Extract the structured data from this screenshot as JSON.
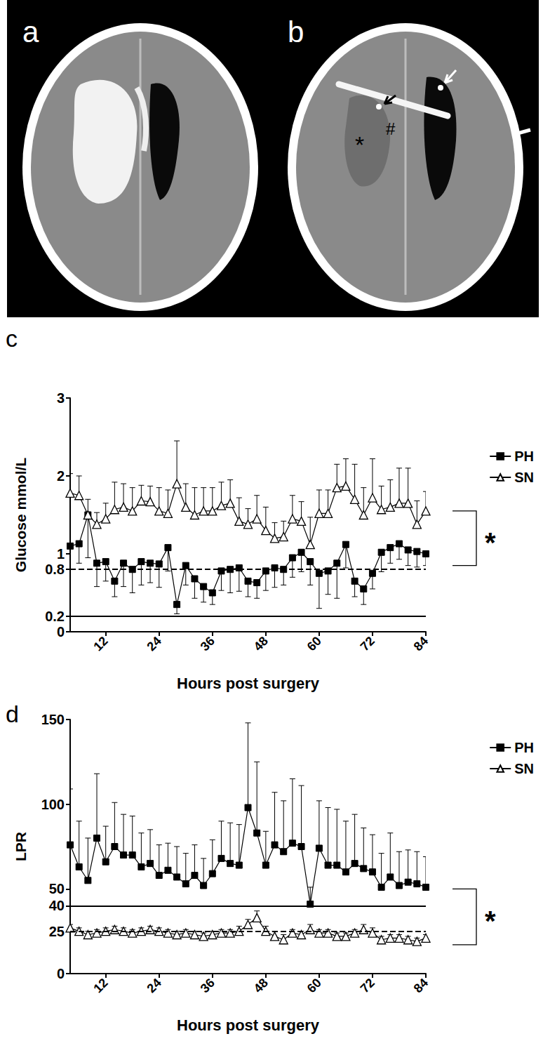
{
  "images": [
    {
      "panel": "a"
    },
    {
      "panel": "b",
      "annotations": [
        "*",
        "#"
      ]
    }
  ],
  "chart_data": [
    {
      "panel": "c",
      "type": "line",
      "x_label": "Hours post surgery",
      "y_label": "Glucose mmol/L",
      "x": [
        4,
        6,
        8,
        10,
        12,
        14,
        16,
        18,
        20,
        22,
        24,
        26,
        28,
        30,
        32,
        34,
        36,
        38,
        40,
        42,
        44,
        46,
        48,
        50,
        52,
        54,
        56,
        58,
        60,
        62,
        64,
        66,
        68,
        70,
        72,
        74,
        76,
        78,
        80,
        82,
        84
      ],
      "xlim": [
        4,
        84
      ],
      "xticks": [
        12,
        24,
        36,
        48,
        60,
        72,
        84
      ],
      "ylim": [
        0,
        3
      ],
      "yticks": [
        0,
        0.2,
        0.8,
        1,
        2,
        3
      ],
      "grid": false,
      "legend": "right",
      "reference_lines": [
        {
          "value": 0.8,
          "line_style": "dashed"
        },
        {
          "value": 0.2,
          "line_style": "solid"
        }
      ],
      "significance": {
        "text": "*",
        "y": [
          1.55,
          0.85
        ]
      },
      "series": [
        {
          "name": "PH",
          "color": "#000000",
          "marker": "square",
          "line_style": "solid",
          "values": [
            1.1,
            1.13,
            1.5,
            0.88,
            0.9,
            0.65,
            0.88,
            0.8,
            0.9,
            0.88,
            0.87,
            1.08,
            0.35,
            0.85,
            0.68,
            0.58,
            0.5,
            0.78,
            0.8,
            0.82,
            0.65,
            0.63,
            0.78,
            0.82,
            0.8,
            0.95,
            1.02,
            0.9,
            0.75,
            0.78,
            0.88,
            1.12,
            0.65,
            0.55,
            0.75,
            1.02,
            1.08,
            1.13,
            1.05,
            1.03,
            1.0
          ],
          "error_low": [
            0.3,
            0.25,
            0.55,
            0.3,
            0.25,
            0.2,
            0.3,
            0.3,
            0.3,
            0.25,
            0.3,
            0.3,
            0.12,
            0.25,
            0.25,
            0.2,
            0.15,
            0.25,
            0.3,
            0.3,
            0.2,
            0.2,
            0.25,
            0.25,
            0.2,
            0.25,
            0.25,
            0.3,
            0.45,
            0.3,
            0.45,
            0.3,
            0.2,
            0.2,
            0.2,
            0.25,
            0.2,
            0.2,
            0.2,
            0.2,
            0.15
          ]
        },
        {
          "name": "SN",
          "color": "#000000",
          "marker": "open triangle",
          "line_style": "solid",
          "values": [
            1.78,
            1.75,
            1.5,
            1.38,
            1.45,
            1.57,
            1.6,
            1.55,
            1.68,
            1.67,
            1.55,
            1.52,
            1.9,
            1.6,
            1.5,
            1.55,
            1.55,
            1.62,
            1.65,
            1.42,
            1.38,
            1.45,
            1.3,
            1.2,
            1.22,
            1.45,
            1.42,
            1.12,
            1.52,
            1.52,
            1.85,
            1.87,
            1.7,
            1.5,
            1.72,
            1.57,
            1.6,
            1.65,
            1.65,
            1.38,
            1.55
          ],
          "error_high": [
            0.25,
            0.25,
            0.2,
            0.15,
            0.2,
            0.35,
            0.3,
            0.3,
            0.2,
            0.2,
            0.3,
            0.3,
            0.55,
            0.3,
            0.35,
            0.3,
            0.3,
            0.3,
            0.3,
            0.3,
            0.2,
            0.3,
            0.3,
            0.2,
            0.2,
            0.3,
            0.25,
            0.35,
            0.3,
            0.3,
            0.3,
            0.35,
            0.45,
            0.35,
            0.5,
            0.3,
            0.35,
            0.45,
            0.45,
            0.3,
            0.25
          ]
        }
      ]
    },
    {
      "panel": "d",
      "type": "line",
      "x_label": "Hours post surgery",
      "y_label": "LPR",
      "x": [
        4,
        6,
        8,
        10,
        12,
        14,
        16,
        18,
        20,
        22,
        24,
        26,
        28,
        30,
        32,
        34,
        36,
        38,
        40,
        42,
        44,
        46,
        48,
        50,
        52,
        54,
        56,
        58,
        60,
        62,
        64,
        66,
        68,
        70,
        72,
        74,
        76,
        78,
        80,
        82,
        84
      ],
      "xlim": [
        4,
        84
      ],
      "xticks": [
        12,
        24,
        36,
        48,
        60,
        72,
        84
      ],
      "ylim": [
        0,
        150
      ],
      "yticks": [
        0,
        25,
        40,
        50,
        100,
        150
      ],
      "grid": false,
      "legend": "right",
      "reference_lines": [
        {
          "value": 40,
          "line_style": "solid"
        },
        {
          "value": 25,
          "line_style": "dashed"
        }
      ],
      "significance": {
        "text": "*",
        "y": [
          50,
          17
        ]
      },
      "series": [
        {
          "name": "PH",
          "color": "#000000",
          "marker": "square",
          "line_style": "solid",
          "values": [
            76,
            63,
            55,
            80,
            66,
            75,
            70,
            70,
            63,
            65,
            58,
            61,
            57,
            53,
            58,
            52,
            59,
            68,
            65,
            64,
            98,
            83,
            64,
            76,
            72,
            77,
            75,
            41,
            74,
            64,
            64,
            60,
            65,
            62,
            60,
            51,
            57,
            52,
            54,
            53,
            51
          ],
          "error_high": [
            33,
            27,
            25,
            38,
            21,
            26,
            24,
            23,
            20,
            20,
            18,
            16,
            18,
            18,
            18,
            16,
            20,
            22,
            24,
            24,
            50,
            42,
            20,
            31,
            30,
            38,
            36,
            10,
            28,
            34,
            33,
            30,
            29,
            24,
            22,
            20,
            26,
            20,
            19,
            19,
            18
          ]
        },
        {
          "name": "SN",
          "color": "#000000",
          "marker": "open triangle",
          "line_style": "solid",
          "values": [
            27,
            25,
            23,
            24,
            25,
            26,
            25,
            24,
            25,
            26,
            25,
            24,
            23,
            24,
            23,
            22,
            23,
            24,
            24,
            25,
            29,
            33,
            25,
            22,
            20,
            24,
            23,
            26,
            24,
            24,
            22,
            22,
            24,
            26,
            24,
            20,
            21,
            21,
            20,
            19,
            21
          ],
          "error_high": [
            2,
            2,
            2,
            2,
            2,
            2,
            2,
            2,
            2,
            2,
            2,
            2,
            2,
            2,
            2,
            2,
            2,
            2,
            2,
            3,
            3,
            4,
            3,
            3,
            3,
            2,
            2,
            3,
            2,
            2,
            2,
            2,
            2,
            3,
            3,
            2,
            2,
            2,
            2,
            2,
            2
          ]
        }
      ]
    }
  ]
}
